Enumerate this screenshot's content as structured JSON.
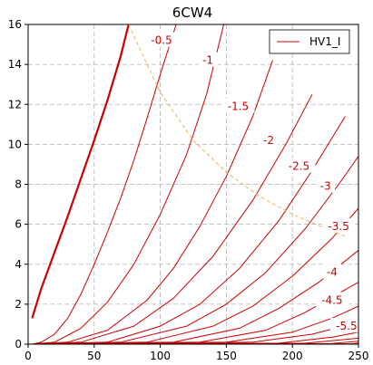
{
  "chart_data": {
    "type": "line",
    "title": "6CW4",
    "xlabel": "",
    "ylabel": "",
    "xlim": [
      0,
      250
    ],
    "ylim": [
      0,
      16
    ],
    "xticks": [
      0,
      50,
      100,
      150,
      200,
      250
    ],
    "yticks": [
      0,
      2,
      4,
      6,
      8,
      10,
      12,
      14,
      16
    ],
    "grid": true,
    "legend": {
      "position": "top-right",
      "entries": [
        "HV1_I"
      ]
    },
    "colors": {
      "curve": "#cc0000",
      "dissipation": "#f0b060",
      "grid": "#b0b0b0"
    },
    "series": [
      {
        "grid_voltage": "0",
        "bold": true,
        "x": [
          3,
          10,
          20,
          30,
          40,
          50,
          60,
          70,
          76
        ],
        "y": [
          1.3,
          2.8,
          4.6,
          6.4,
          8.3,
          10.2,
          12.2,
          14.4,
          16
        ]
      },
      {
        "grid_voltage": "-0.5",
        "x": [
          3,
          10,
          20,
          30,
          40,
          50,
          60,
          70,
          80,
          90,
          100,
          112
        ],
        "y": [
          0,
          0.1,
          0.5,
          1.3,
          2.5,
          4.0,
          5.6,
          7.3,
          9.2,
          11.3,
          13.5,
          16
        ]
      },
      {
        "grid_voltage": "-1",
        "x": [
          3,
          20,
          40,
          60,
          80,
          100,
          120,
          135,
          148
        ],
        "y": [
          0,
          0.1,
          0.8,
          2.1,
          4.0,
          6.5,
          9.5,
          12.5,
          16
        ]
      },
      {
        "grid_voltage": "-1.5",
        "x": [
          3,
          30,
          60,
          90,
          110,
          130,
          150,
          170,
          185
        ],
        "y": [
          0,
          0.1,
          0.7,
          2.2,
          3.8,
          5.9,
          8.4,
          11.4,
          14.2
        ]
      },
      {
        "grid_voltage": "-2",
        "x": [
          3,
          40,
          80,
          110,
          140,
          170,
          195,
          215
        ],
        "y": [
          0,
          0.1,
          0.9,
          2.3,
          4.4,
          7.2,
          10.0,
          12.5
        ]
      },
      {
        "grid_voltage": "-2.5",
        "x": [
          3,
          60,
          100,
          130,
          160,
          190,
          215,
          240
        ],
        "y": [
          0,
          0.1,
          0.9,
          2.0,
          3.8,
          6.2,
          8.7,
          11.4
        ]
      },
      {
        "grid_voltage": "-3",
        "x": [
          3,
          70,
          120,
          150,
          180,
          210,
          235,
          250
        ],
        "y": [
          0,
          0.1,
          0.9,
          2.0,
          3.6,
          5.8,
          8.0,
          9.4
        ]
      },
      {
        "grid_voltage": "-3.5",
        "x": [
          3,
          90,
          140,
          170,
          200,
          230,
          250
        ],
        "y": [
          0,
          0.1,
          0.9,
          1.9,
          3.4,
          5.3,
          6.8
        ]
      },
      {
        "grid_voltage": "-4",
        "x": [
          3,
          110,
          160,
          190,
          220,
          250
        ],
        "y": [
          0,
          0.1,
          0.8,
          1.8,
          3.1,
          4.7
        ]
      },
      {
        "grid_voltage": "-4.5",
        "x": [
          3,
          130,
          180,
          210,
          250
        ],
        "y": [
          0,
          0.1,
          0.7,
          1.6,
          3.1
        ]
      },
      {
        "grid_voltage": "-5",
        "x": [
          3,
          150,
          200,
          230,
          250
        ],
        "y": [
          0,
          0.1,
          0.6,
          1.3,
          1.9
        ]
      },
      {
        "grid_voltage": "-5.5",
        "x": [
          3,
          170,
          215,
          250
        ],
        "y": [
          0,
          0.1,
          0.5,
          1.1
        ]
      },
      {
        "grid_voltage": "-6",
        "x": [
          3,
          190,
          230,
          250
        ],
        "y": [
          0,
          0.05,
          0.35,
          0.6
        ]
      },
      {
        "grid_voltage": "-6.5",
        "x": [
          3,
          210,
          250
        ],
        "y": [
          0,
          0.05,
          0.3
        ]
      },
      {
        "grid_voltage": "-7",
        "x": [
          3,
          230,
          250
        ],
        "y": [
          0,
          0.03,
          0.15
        ]
      },
      {
        "grid_voltage": "-7.5",
        "x": [
          3,
          245,
          250
        ],
        "y": [
          0,
          0.02,
          0.06
        ]
      }
    ],
    "dissipation": {
      "x": [
        76,
        90,
        100,
        125,
        150,
        175,
        200,
        225,
        240
      ],
      "y": [
        16,
        14.0,
        12.6,
        10.2,
        8.6,
        7.4,
        6.5,
        5.8,
        5.4
      ]
    },
    "labels": [
      {
        "text": "-0.5",
        "x": 101,
        "y": 15.2
      },
      {
        "text": "-1",
        "x": 136,
        "y": 14.2
      },
      {
        "text": "-1.5",
        "x": 159,
        "y": 11.9
      },
      {
        "text": "-2",
        "x": 182,
        "y": 10.2
      },
      {
        "text": "-2.5",
        "x": 205,
        "y": 8.9
      },
      {
        "text": "-3",
        "x": 225,
        "y": 7.9
      },
      {
        "text": "-3.5",
        "x": 235,
        "y": 5.9
      },
      {
        "text": "-4",
        "x": 230,
        "y": 3.6
      },
      {
        "text": "-4.5",
        "x": 230,
        "y": 2.2
      },
      {
        "text": "-5.5",
        "x": 241,
        "y": 0.9
      }
    ]
  }
}
